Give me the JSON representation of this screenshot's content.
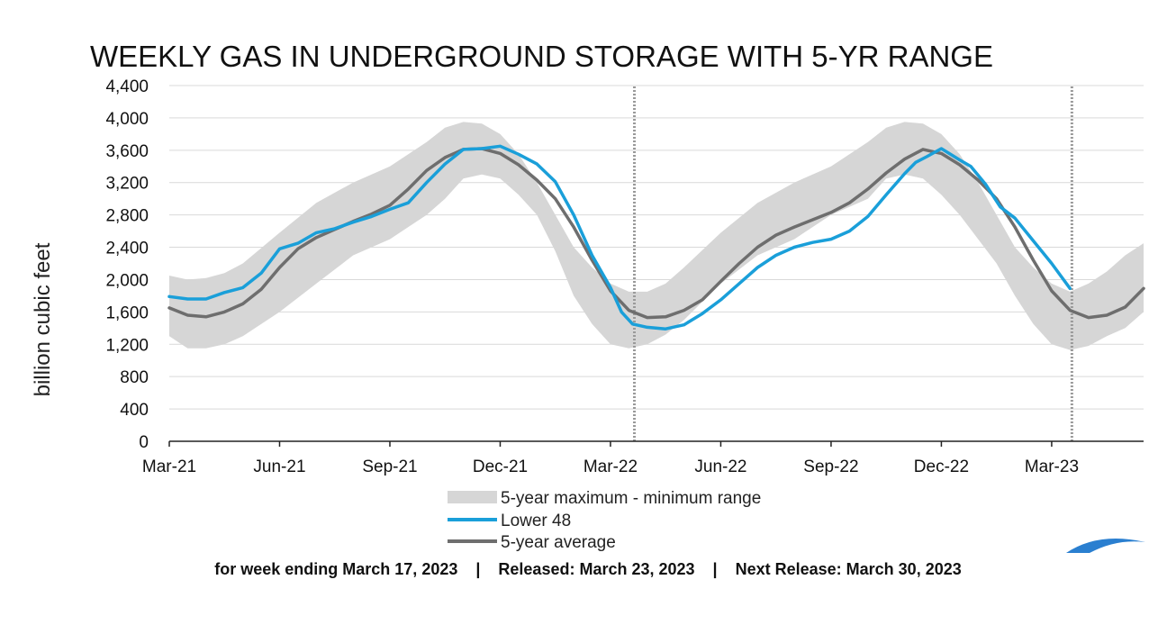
{
  "chart_data": {
    "type": "line",
    "title": "WEEKLY GAS IN UNDERGROUND STORAGE WITH 5-YR RANGE",
    "ylabel": "billion cubic feet",
    "xlabel": "",
    "ylim": [
      0,
      4400
    ],
    "yticks": [
      0,
      400,
      800,
      1200,
      1600,
      2000,
      2400,
      2800,
      3200,
      3600,
      4000,
      4400
    ],
    "ytick_labels": [
      "0",
      "400",
      "800",
      "1,200",
      "1,600",
      "2,000",
      "2,400",
      "2,800",
      "3,200",
      "3,600",
      "4,000",
      "4,400"
    ],
    "xticks": [
      "Mar-21",
      "Jun-21",
      "Sep-21",
      "Dec-21",
      "Mar-22",
      "Jun-22",
      "Sep-22",
      "Dec-22",
      "Mar-23"
    ],
    "x_months": [
      0,
      3,
      6,
      9,
      12,
      15,
      18,
      21,
      24
    ],
    "x_range_months": [
      0,
      26.5
    ],
    "reference_lines_months": [
      12.65,
      24.55
    ],
    "grid": "horizontal",
    "legend_position": "bottom",
    "colors": {
      "band": "#d6d6d6",
      "lower48": "#1a9fd9",
      "avg": "#6e6e6e",
      "ref": "#9a9a9a",
      "grid": "#d9d9d9",
      "logo": "#2a7fd0"
    },
    "series": [
      {
        "name": "5-year maximum - minimum range",
        "kind": "band",
        "x": [
          0,
          0.5,
          1,
          1.5,
          2,
          3,
          4,
          5,
          6,
          7,
          7.5,
          8,
          8.5,
          9,
          9.5,
          10,
          10.5,
          11,
          11.5,
          12,
          12.5,
          13,
          13.5,
          14,
          15,
          16,
          17,
          18,
          19,
          19.5,
          20,
          20.5,
          21,
          21.5,
          22,
          22.5,
          23,
          23.5,
          24,
          24.5,
          25,
          25.5,
          26,
          26.5
        ],
        "upper": [
          2050,
          2000,
          2020,
          2080,
          2200,
          2580,
          2950,
          3200,
          3400,
          3700,
          3880,
          3950,
          3930,
          3800,
          3550,
          3200,
          2800,
          2400,
          2150,
          1950,
          1850,
          1850,
          1950,
          2150,
          2580,
          2950,
          3200,
          3400,
          3700,
          3880,
          3950,
          3930,
          3800,
          3550,
          3200,
          2800,
          2400,
          2150,
          1950,
          1850,
          1950,
          2100,
          2300,
          2450
        ],
        "lower": [
          1300,
          1150,
          1150,
          1200,
          1300,
          1600,
          1950,
          2300,
          2500,
          2800,
          3000,
          3250,
          3300,
          3250,
          3050,
          2800,
          2350,
          1800,
          1450,
          1200,
          1150,
          1200,
          1320,
          1500,
          1950,
          2300,
          2500,
          2800,
          3000,
          3250,
          3300,
          3250,
          3050,
          2800,
          2500,
          2200,
          1800,
          1450,
          1200,
          1130,
          1180,
          1300,
          1400,
          1600
        ]
      },
      {
        "name": "Lower 48",
        "kind": "line",
        "x": [
          0,
          0.5,
          1,
          1.5,
          2,
          2.5,
          3,
          3.5,
          4,
          4.5,
          5,
          5.5,
          6,
          6.5,
          7,
          7.5,
          8,
          8.5,
          9,
          9.5,
          10,
          10.5,
          11,
          11.5,
          12,
          12.3,
          12.6,
          13,
          13.5,
          14,
          14.5,
          15,
          15.5,
          16,
          16.5,
          17,
          17.5,
          18,
          18.5,
          19,
          19.5,
          20,
          20.3,
          20.6,
          21,
          21.5,
          21.8,
          22.2,
          22.6,
          23,
          23.5,
          24,
          24.5
        ],
        "values": [
          1790,
          1760,
          1760,
          1840,
          1900,
          2080,
          2380,
          2450,
          2580,
          2630,
          2710,
          2780,
          2870,
          2950,
          3200,
          3430,
          3610,
          3620,
          3650,
          3550,
          3430,
          3210,
          2800,
          2300,
          1900,
          1600,
          1450,
          1410,
          1390,
          1440,
          1580,
          1750,
          1950,
          2150,
          2300,
          2400,
          2460,
          2500,
          2600,
          2780,
          3050,
          3310,
          3450,
          3520,
          3620,
          3480,
          3400,
          3180,
          2900,
          2760,
          2480,
          2200,
          1890
        ]
      },
      {
        "name": "5-year average",
        "kind": "line",
        "x": [
          0,
          0.5,
          1,
          1.5,
          2,
          2.5,
          3,
          3.5,
          4,
          4.5,
          5,
          5.5,
          6,
          6.5,
          7,
          7.5,
          8,
          8.5,
          9,
          9.5,
          10,
          10.5,
          11,
          11.5,
          12,
          12.5,
          13,
          13.5,
          14,
          14.5,
          15,
          15.5,
          16,
          16.5,
          17,
          17.5,
          18,
          18.5,
          19,
          19.5,
          20,
          20.5,
          21,
          21.5,
          22,
          22.5,
          23,
          23.5,
          24,
          24.5,
          25,
          25.5,
          26,
          26.5
        ],
        "values": [
          1650,
          1560,
          1540,
          1600,
          1700,
          1880,
          2150,
          2380,
          2520,
          2620,
          2720,
          2810,
          2920,
          3120,
          3350,
          3510,
          3610,
          3620,
          3560,
          3420,
          3230,
          3000,
          2650,
          2240,
          1860,
          1620,
          1530,
          1540,
          1620,
          1750,
          1980,
          2200,
          2400,
          2550,
          2650,
          2740,
          2830,
          2950,
          3120,
          3320,
          3490,
          3610,
          3560,
          3420,
          3230,
          3000,
          2650,
          2240,
          1860,
          1620,
          1530,
          1560,
          1660,
          1890
        ]
      }
    ]
  },
  "footer": {
    "week_ending": "for week ending March 17, 2023",
    "separator": "|",
    "released": "Released: March 23, 2023",
    "next_release": "Next Release: March 30, 2023"
  }
}
